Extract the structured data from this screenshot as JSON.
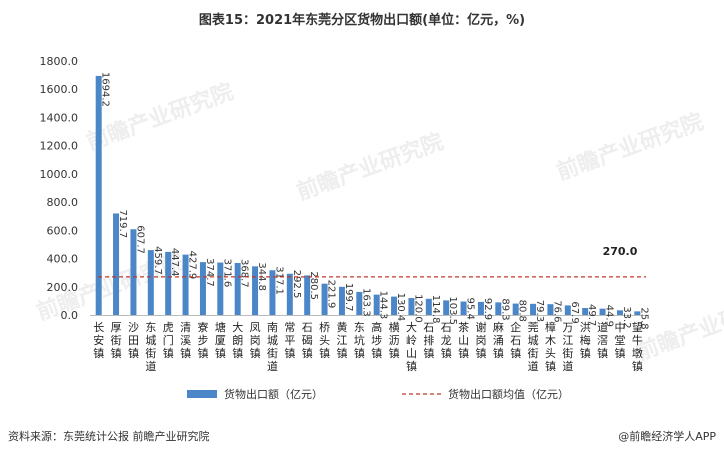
{
  "title": "图表15：2021年东莞分区货物出口额(单位：亿元，%)",
  "chart_data": {
    "type": "bar",
    "categories": [
      "长安镇",
      "厚街镇",
      "沙田镇",
      "东城街道",
      "虎门镇",
      "清溪镇",
      "寮步镇",
      "塘厦镇",
      "大朗镇",
      "凤岗镇",
      "南城街道",
      "常平镇",
      "石碣镇",
      "桥头镇",
      "黄江镇",
      "东坑镇",
      "高埗镇",
      "横沥镇",
      "大岭山镇",
      "石排镇",
      "石龙镇",
      "茶山镇",
      "谢岗镇",
      "麻涌镇",
      "企石镇",
      "莞城街道",
      "樟木头镇",
      "万江街道",
      "洪梅镇",
      "道滘镇",
      "中堂镇",
      "望牛墩镇"
    ],
    "values": [
      1694.2,
      719.7,
      607.7,
      459.7,
      447.4,
      427.9,
      374.7,
      371.6,
      368.7,
      344.8,
      317.1,
      292.5,
      280.5,
      221.9,
      199.7,
      163.3,
      144.3,
      130.4,
      120.0,
      114.8,
      103.5,
      95.4,
      92.9,
      89.3,
      80.8,
      79.3,
      76.6,
      67.9,
      49.7,
      44.9,
      33.2,
      25.8
    ],
    "value_labels": [
      "1694.2",
      "719.7",
      "607.7",
      "459.7",
      "447.4",
      "427.9",
      "374.7",
      "371.6",
      "368.7",
      "344.8",
      "317.1",
      "292.5",
      "280.5",
      "221.9",
      "199.7",
      "163.3",
      "144.3",
      "130.4",
      "120.0",
      "114.8",
      "103.5",
      "95.4",
      "92.9",
      "89.3",
      "80.8",
      "79.3",
      "76.6",
      "67.9",
      "49.7",
      "44.9",
      "33.2",
      "25.8"
    ],
    "average": 270.0,
    "average_label": "270.0",
    "ylim": [
      0,
      1800
    ],
    "yticks": [
      "0.0",
      "200.0",
      "400.0",
      "600.0",
      "800.0",
      "1000.0",
      "1200.0",
      "1400.0",
      "1600.0",
      "1800.0"
    ],
    "legend": {
      "bar": "货物出口额（亿元）",
      "line": "货物出口额均值（亿元）"
    },
    "colors": {
      "bar": "#4a86c8",
      "average_line": "#c0392b"
    }
  },
  "footer": {
    "source": "资料来源：东莞统计公报 前瞻产业研究院",
    "brand": "@前瞻经济学人APP"
  },
  "watermark": "前瞻产业研究院"
}
